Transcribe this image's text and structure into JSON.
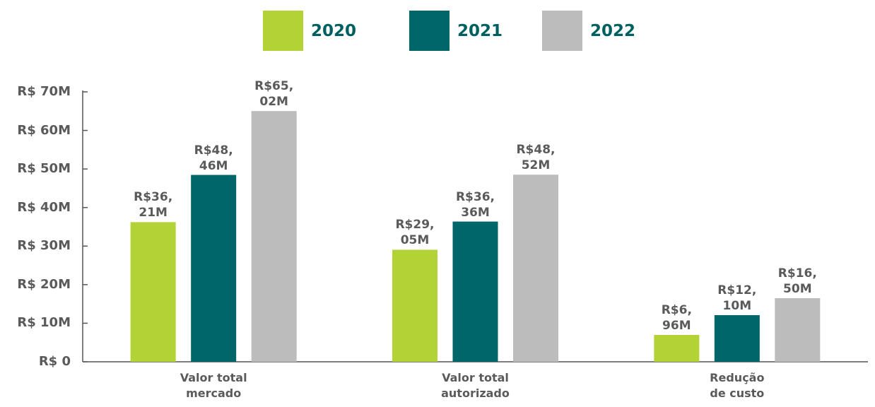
{
  "chart_data": {
    "type": "bar",
    "categories": [
      "Valor total\nmercado",
      "Valor total\nautorizado",
      "Redução\nde custo"
    ],
    "series": [
      {
        "name": "2020",
        "color": "#b2d235",
        "values": [
          36.21,
          29.05,
          6.96
        ],
        "value_labels": [
          "R$36,\n21M",
          "R$29,\n05M",
          "R$6,\n96M"
        ]
      },
      {
        "name": "2021",
        "color": "#00666a",
        "values": [
          48.46,
          36.36,
          12.1
        ],
        "value_labels": [
          "R$48,\n46M",
          "R$36,\n36M",
          "R$12,\n10M"
        ]
      },
      {
        "name": "2022",
        "color": "#bcbcbc",
        "values": [
          65.02,
          48.52,
          16.5
        ],
        "value_labels": [
          "R$65,\n02M",
          "R$48,\n52M",
          "R$16,\n50M"
        ]
      }
    ],
    "ylim": [
      0,
      70
    ],
    "yticks": [
      {
        "value": 0,
        "label": "R$ 0"
      },
      {
        "value": 10,
        "label": "R$ 10M"
      },
      {
        "value": 20,
        "label": "R$ 20M"
      },
      {
        "value": 30,
        "label": "R$ 30M"
      },
      {
        "value": 40,
        "label": "R$ 40M"
      },
      {
        "value": 50,
        "label": "R$ 50M"
      },
      {
        "value": 60,
        "label": "R$ 60M"
      },
      {
        "value": 70,
        "label": "R$ 70M"
      }
    ],
    "legend": "top",
    "grid": false
  }
}
